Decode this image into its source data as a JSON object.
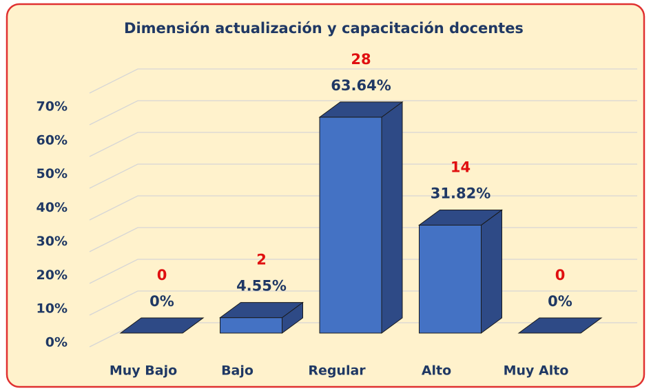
{
  "chart_data": {
    "type": "bar3d",
    "title": "Dimensión actualización y capacitación docentes",
    "categories": [
      "Muy Bajo",
      "Bajo",
      "Regular",
      "Alto",
      "Muy Alto"
    ],
    "values": [
      0,
      4.55,
      63.64,
      31.82,
      0
    ],
    "value_labels": [
      "0%",
      "4.55%",
      "63.64%",
      "31.82%",
      "0%"
    ],
    "counts": [
      0,
      2,
      28,
      14,
      0
    ],
    "color": "#4472c4",
    "ylim": [
      0,
      80
    ],
    "yticks": [
      {
        "value": 0,
        "label": "0%"
      },
      {
        "value": 10,
        "label": "10%"
      },
      {
        "value": 20,
        "label": "20%"
      },
      {
        "value": 30,
        "label": "30%"
      },
      {
        "value": 40,
        "label": "40%"
      },
      {
        "value": 50,
        "label": "50%"
      },
      {
        "value": 60,
        "label": "60%"
      },
      {
        "value": 70,
        "label": "70%"
      }
    ],
    "grid": true
  }
}
